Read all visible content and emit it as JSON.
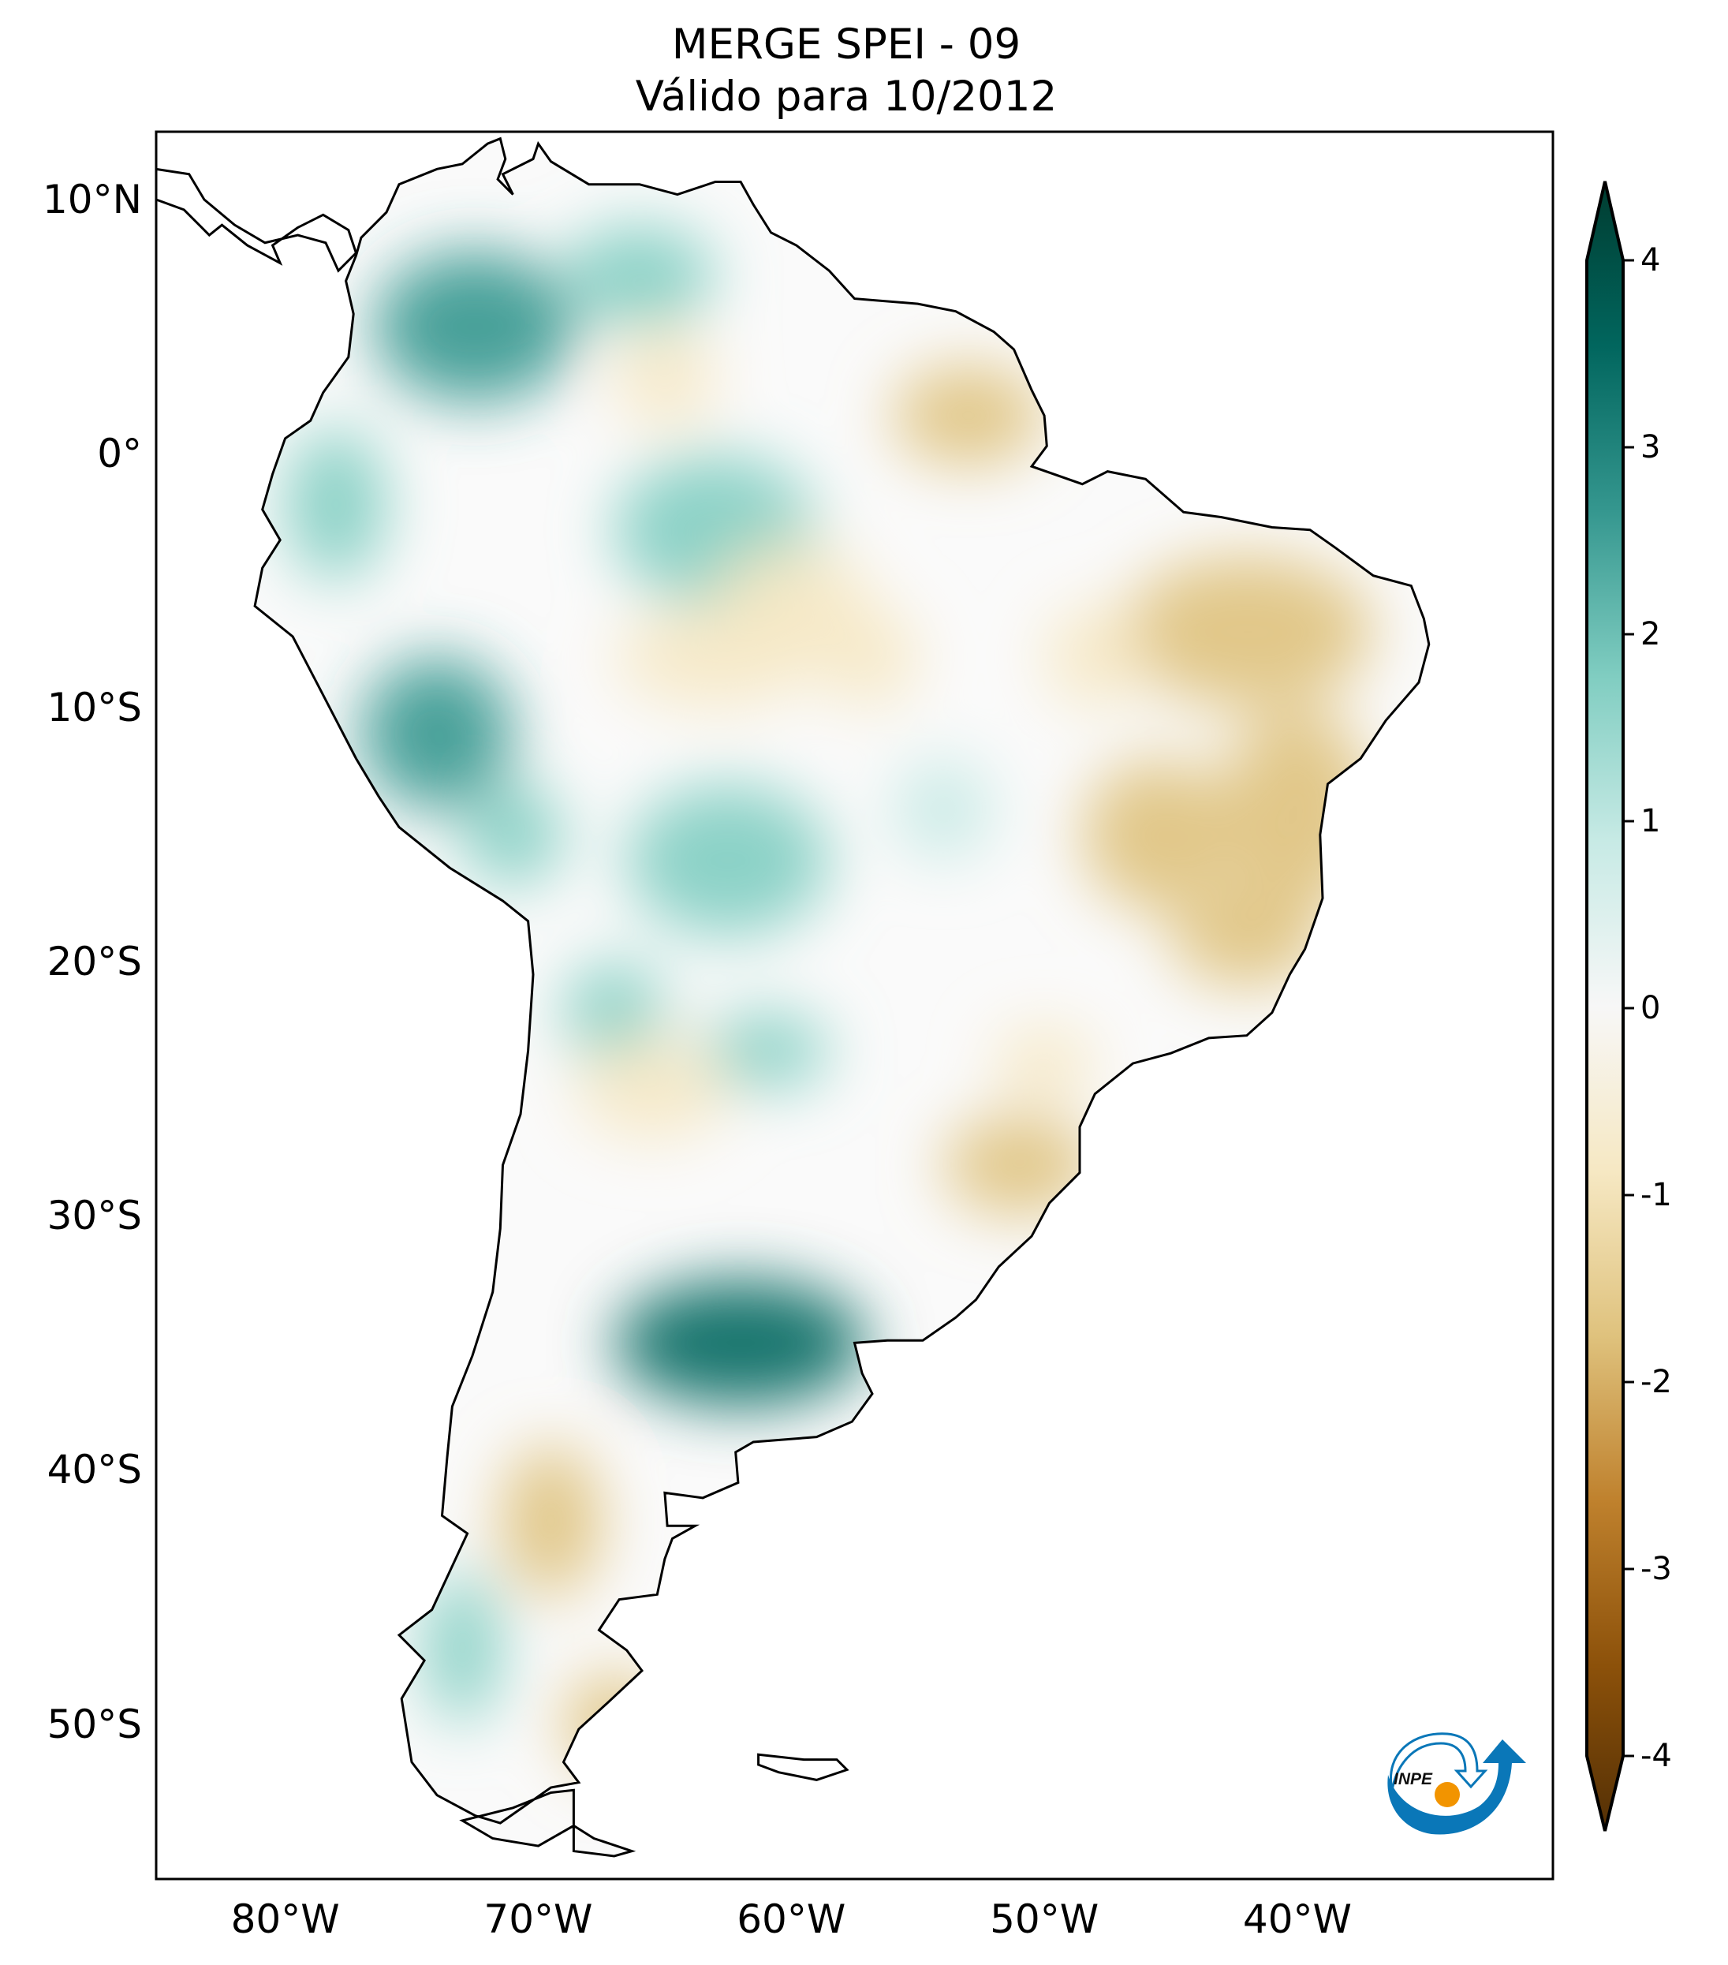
{
  "title": {
    "line1": "MERGE   SPEI - 09",
    "line2": "Válido para 10/2012"
  },
  "map": {
    "projection": "PlateCarree",
    "extent_lon": [
      -85,
      -30
    ],
    "extent_lat": [
      -56,
      12.7
    ],
    "lat_ticks": [
      {
        "value": 10,
        "label": "10°N"
      },
      {
        "value": 0,
        "label": "0°"
      },
      {
        "value": -10,
        "label": "10°S"
      },
      {
        "value": -20,
        "label": "20°S"
      },
      {
        "value": -30,
        "label": "30°S"
      },
      {
        "value": -40,
        "label": "40°S"
      },
      {
        "value": -50,
        "label": "50°S"
      }
    ],
    "lon_ticks": [
      {
        "value": -80,
        "label": "80°W"
      },
      {
        "value": -70,
        "label": "70°W"
      },
      {
        "value": -60,
        "label": "60°W"
      },
      {
        "value": -50,
        "label": "50°W"
      },
      {
        "value": -40,
        "label": "40°W"
      }
    ],
    "variable": "SPEI",
    "wet_regions": [
      "Colombia/Venezuela",
      "Ecuador/Peru",
      "Bolivia",
      "Paraguay",
      "central Argentina (strongest)"
    ],
    "dry_regions": [
      "Northeast Brazil",
      "Central Brazil",
      "Southern Brazil",
      "Patagonia"
    ]
  },
  "colorbar": {
    "colormap": "BrBG",
    "range": [
      -4,
      4
    ],
    "extend": "both",
    "ticks": [
      {
        "value": 4,
        "label": "4"
      },
      {
        "value": 3,
        "label": "3"
      },
      {
        "value": 2,
        "label": "2"
      },
      {
        "value": 1,
        "label": "1"
      },
      {
        "value": 0,
        "label": "0"
      },
      {
        "value": -1,
        "label": "-1"
      },
      {
        "value": -2,
        "label": "-2"
      },
      {
        "value": -3,
        "label": "-3"
      },
      {
        "value": -4,
        "label": "-4"
      }
    ],
    "colors": [
      "#543005",
      "#8c510a",
      "#bf812d",
      "#dfc27d",
      "#f6e8c3",
      "#f7f7f7",
      "#c7eae5",
      "#80cdc1",
      "#35978f",
      "#01665e",
      "#003c30"
    ]
  },
  "logo": {
    "text": "INPE",
    "blue": "#0a77b8",
    "orange": "#f29400"
  }
}
